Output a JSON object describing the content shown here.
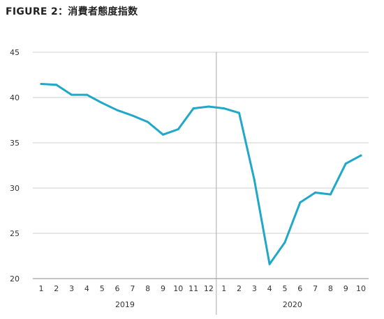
{
  "title": "FIGURE 2：消費者態度指数",
  "chart_data": {
    "type": "line",
    "title": "FIGURE 2：消費者態度指数",
    "xlabel": "",
    "ylabel": "",
    "ylim": [
      20,
      45
    ],
    "yticks": [
      "20",
      "25",
      "30",
      "35",
      "40",
      "45"
    ],
    "grid": true,
    "legend": "none",
    "line_color": "#1fa8c8",
    "years": [
      {
        "label": "2019",
        "months": 12
      },
      {
        "label": "2020",
        "months": 10
      }
    ],
    "categories": [
      "1",
      "2",
      "3",
      "4",
      "5",
      "6",
      "7",
      "8",
      "9",
      "10",
      "11",
      "12",
      "1",
      "2",
      "3",
      "4",
      "5",
      "6",
      "7",
      "8",
      "9",
      "10"
    ],
    "values": [
      41.5,
      41.4,
      40.3,
      40.3,
      39.4,
      38.6,
      38.0,
      37.3,
      35.9,
      36.5,
      38.8,
      39.0,
      38.8,
      38.3,
      30.9,
      21.6,
      24.0,
      28.4,
      29.5,
      29.3,
      32.7,
      33.6
    ]
  }
}
